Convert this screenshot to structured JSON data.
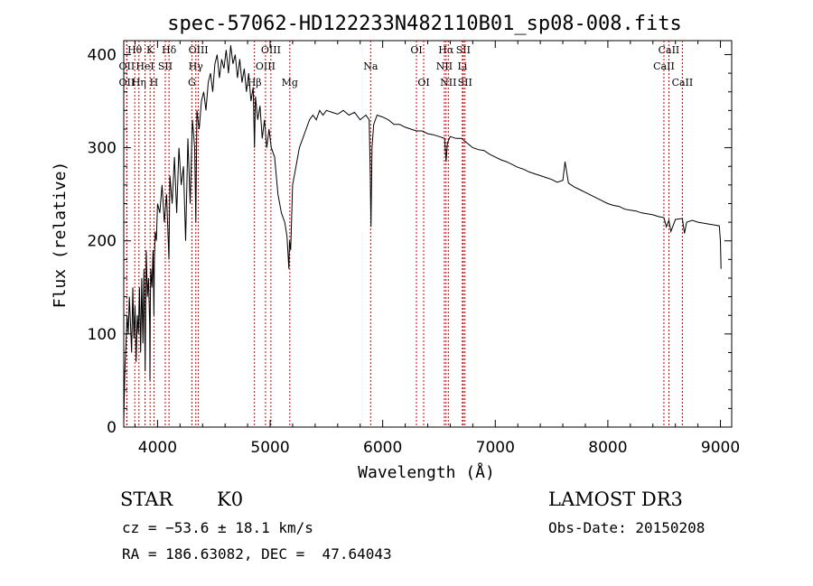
{
  "chart_data": {
    "type": "line",
    "title": "spec-57062-HD122233N482110B01_sp08-008.fits",
    "xlabel": "Wavelength (Å)",
    "ylabel": "Flux (relative)",
    "xlim": [
      3700,
      9100
    ],
    "ylim": [
      0,
      415
    ],
    "x_ticks": [
      4000,
      5000,
      6000,
      7000,
      8000,
      9000
    ],
    "x_tick_labels": [
      "4000",
      "5000",
      "6000",
      "7000",
      "8000",
      "9000"
    ],
    "y_ticks": [
      0,
      100,
      200,
      300,
      400
    ],
    "y_tick_labels": [
      "0",
      "100",
      "200",
      "300",
      "400"
    ],
    "line_color": "#000000",
    "marker_color": "#cc0000",
    "grid": false,
    "series": [
      {
        "x": [
          3700,
          3710,
          3720,
          3730,
          3740,
          3750,
          3760,
          3770,
          3780,
          3790,
          3800,
          3810,
          3820,
          3830,
          3840,
          3850,
          3860,
          3870,
          3880,
          3890,
          3900,
          3910,
          3920,
          3930,
          3933,
          3936,
          3940,
          3950,
          3960,
          3968,
          3972,
          3980,
          3990,
          4000,
          4020,
          4040,
          4060,
          4080,
          4101,
          4110,
          4130,
          4150,
          4170,
          4190,
          4210,
          4230,
          4250,
          4270,
          4290,
          4310,
          4330,
          4340,
          4350,
          4370,
          4390,
          4410,
          4430,
          4450,
          4470,
          4490,
          4510,
          4530,
          4550,
          4570,
          4590,
          4610,
          4630,
          4650,
          4670,
          4690,
          4710,
          4730,
          4750,
          4770,
          4790,
          4810,
          4830,
          4850,
          4861,
          4870,
          4890,
          4910,
          4930,
          4950,
          4970,
          4990,
          5010,
          5040,
          5070,
          5100,
          5130,
          5150,
          5167,
          5172,
          5183,
          5200,
          5230,
          5260,
          5290,
          5320,
          5350,
          5380,
          5410,
          5440,
          5470,
          5500,
          5550,
          5600,
          5650,
          5700,
          5750,
          5800,
          5850,
          5880,
          5890,
          5896,
          5905,
          5920,
          5950,
          6000,
          6050,
          6100,
          6150,
          6200,
          6250,
          6300,
          6350,
          6400,
          6450,
          6500,
          6550,
          6563,
          6575,
          6600,
          6650,
          6700,
          6750,
          6800,
          6850,
          6900,
          6950,
          7000,
          7050,
          7100,
          7150,
          7200,
          7250,
          7300,
          7350,
          7400,
          7450,
          7500,
          7550,
          7600,
          7620,
          7650,
          7700,
          7750,
          7800,
          7850,
          7900,
          7950,
          8000,
          8050,
          8100,
          8150,
          8200,
          8250,
          8300,
          8350,
          8400,
          8450,
          8498,
          8520,
          8542,
          8560,
          8600,
          8662,
          8680,
          8700,
          8750,
          8800,
          8850,
          8900,
          8950,
          8990,
          9000,
          9005
        ],
        "y": [
          5,
          60,
          90,
          120,
          100,
          140,
          110,
          80,
          150,
          95,
          130,
          70,
          120,
          100,
          150,
          80,
          160,
          90,
          170,
          60,
          190,
          140,
          160,
          110,
          50,
          130,
          170,
          150,
          190,
          120,
          180,
          210,
          200,
          240,
          230,
          260,
          220,
          250,
          180,
          270,
          240,
          290,
          230,
          300,
          260,
          280,
          200,
          310,
          240,
          330,
          300,
          220,
          340,
          320,
          350,
          360,
          340,
          370,
          380,
          360,
          390,
          400,
          375,
          395,
          385,
          405,
          380,
          410,
          390,
          400,
          375,
          395,
          370,
          385,
          360,
          380,
          350,
          365,
          300,
          355,
          330,
          345,
          310,
          330,
          300,
          320,
          300,
          290,
          250,
          230,
          220,
          205,
          170,
          200,
          190,
          260,
          280,
          300,
          310,
          320,
          330,
          335,
          330,
          340,
          335,
          340,
          338,
          336,
          340,
          335,
          338,
          330,
          335,
          330,
          270,
          215,
          300,
          325,
          335,
          333,
          330,
          325,
          325,
          322,
          320,
          318,
          318,
          315,
          314,
          312,
          310,
          285,
          305,
          312,
          310,
          310,
          305,
          300,
          298,
          297,
          293,
          290,
          287,
          285,
          282,
          279,
          277,
          274,
          272,
          270,
          268,
          266,
          263,
          265,
          285,
          262,
          258,
          255,
          252,
          249,
          246,
          243,
          240,
          238,
          237,
          234,
          233,
          232,
          230,
          229,
          228,
          226,
          225,
          215,
          222,
          210,
          223,
          224,
          208,
          220,
          222,
          220,
          219,
          218,
          217,
          216,
          200,
          170
        ]
      }
    ],
    "line_markers": [
      {
        "label": "Hθ",
        "wl": 3798,
        "row": 0
      },
      {
        "label": "K",
        "wl": 3934,
        "row": 0
      },
      {
        "label": "Hδ",
        "wl": 4102,
        "row": 0
      },
      {
        "label": "OII",
        "wl": 3727,
        "row": 1
      },
      {
        "label": "HeI",
        "wl": 3889,
        "row": 1
      },
      {
        "label": "SII",
        "wl": 4069,
        "row": 1
      },
      {
        "label": "OII",
        "wl": 3727,
        "row": 2
      },
      {
        "label": "Hη",
        "wl": 3835,
        "row": 2
      },
      {
        "label": "H",
        "wl": 3968,
        "row": 2
      },
      {
        "label": "OIII",
        "wl": 4363,
        "row": 0
      },
      {
        "label": "Hγ",
        "wl": 4340,
        "row": 1
      },
      {
        "label": "G",
        "wl": 4305,
        "row": 2
      },
      {
        "label": "OIII",
        "wl": 5007,
        "row": 0
      },
      {
        "label": "OIII",
        "wl": 4959,
        "row": 1
      },
      {
        "label": "Hβ",
        "wl": 4861,
        "row": 2
      },
      {
        "label": "Mg",
        "wl": 5175,
        "row": 2
      },
      {
        "label": "Na",
        "wl": 5893,
        "row": 1
      },
      {
        "label": "OI",
        "wl": 6300,
        "row": 0
      },
      {
        "label": "OI",
        "wl": 6364,
        "row": 2
      },
      {
        "label": "Hα",
        "wl": 6563,
        "row": 0
      },
      {
        "label": "SII",
        "wl": 6716,
        "row": 0
      },
      {
        "label": "NII",
        "wl": 6548,
        "row": 1
      },
      {
        "label": "Li",
        "wl": 6708,
        "row": 1
      },
      {
        "label": "NII",
        "wl": 6583,
        "row": 2
      },
      {
        "label": "SII",
        "wl": 6731,
        "row": 2
      },
      {
        "label": "CaII",
        "wl": 8542,
        "row": 0
      },
      {
        "label": "CaII",
        "wl": 8498,
        "row": 1
      },
      {
        "label": "CaII",
        "wl": 8662,
        "row": 2
      }
    ]
  },
  "info": {
    "object_class": "STAR",
    "subclass": "K0",
    "survey": "LAMOST DR3",
    "redshift": "cz = −53.6 ± 18.1 km/s",
    "obs_date": "Obs-Date: 20150208",
    "coords": "RA = 186.63082, DEC =  47.64043"
  }
}
